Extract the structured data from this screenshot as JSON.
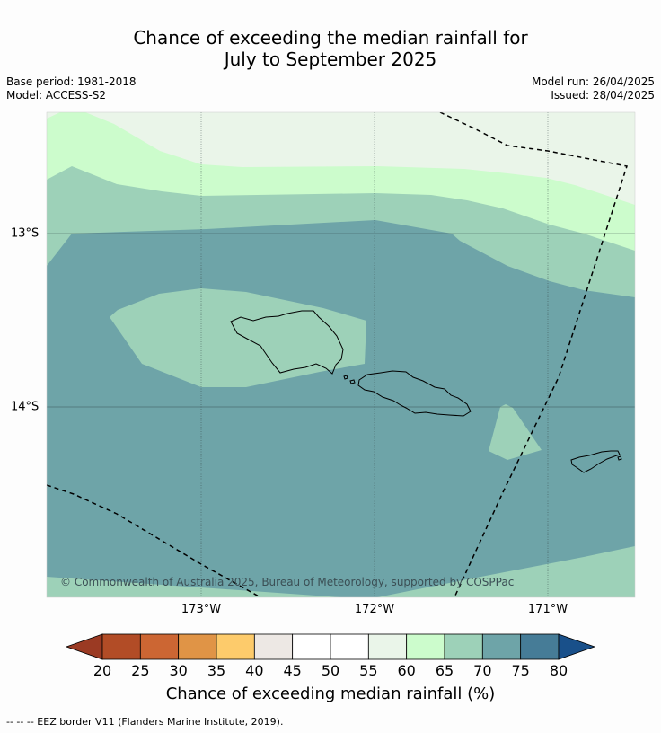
{
  "header": {
    "title_line1": "Chance of exceeding the median rainfall for",
    "title_line2": "July to September 2025",
    "base_period": "Base period: 1981-2018",
    "model": "Model: ACCESS-S2",
    "model_run": "Model run: 26/04/2025",
    "issued": "Issued: 28/04/2025"
  },
  "map": {
    "lon_labels": [
      "173°W",
      "172°W",
      "171°W"
    ],
    "lat_labels": [
      "13°S",
      "14°S"
    ],
    "copyright": "© Commonwealth of Australia 2025, Bureau of Meteorology, supported by COSPPac",
    "colors": {
      "c55_60": "#eaf5e9",
      "c60_65": "#ccfccc",
      "c65_70": "#9dd1b8",
      "c70_75": "#6ea4a8",
      "land": "none",
      "coast": "#000000"
    }
  },
  "colorbar": {
    "ticks": [
      "20",
      "25",
      "30",
      "35",
      "40",
      "45",
      "50",
      "55",
      "60",
      "65",
      "70",
      "75",
      "80"
    ],
    "colors": [
      "#9b3a23",
      "#b24c26",
      "#cc6633",
      "#e09446",
      "#fdcb6b",
      "#ede8e4",
      "#ffffff",
      "#ffffff",
      "#eaf5e9",
      "#ccfccc",
      "#9dd1b8",
      "#6ea4a8",
      "#467c97",
      "#19508a"
    ],
    "label": "Chance of exceeding median rainfall (%)"
  },
  "footnote": "--  --  -- EEZ border V11 (Flanders Marine Institute, 2019)."
}
